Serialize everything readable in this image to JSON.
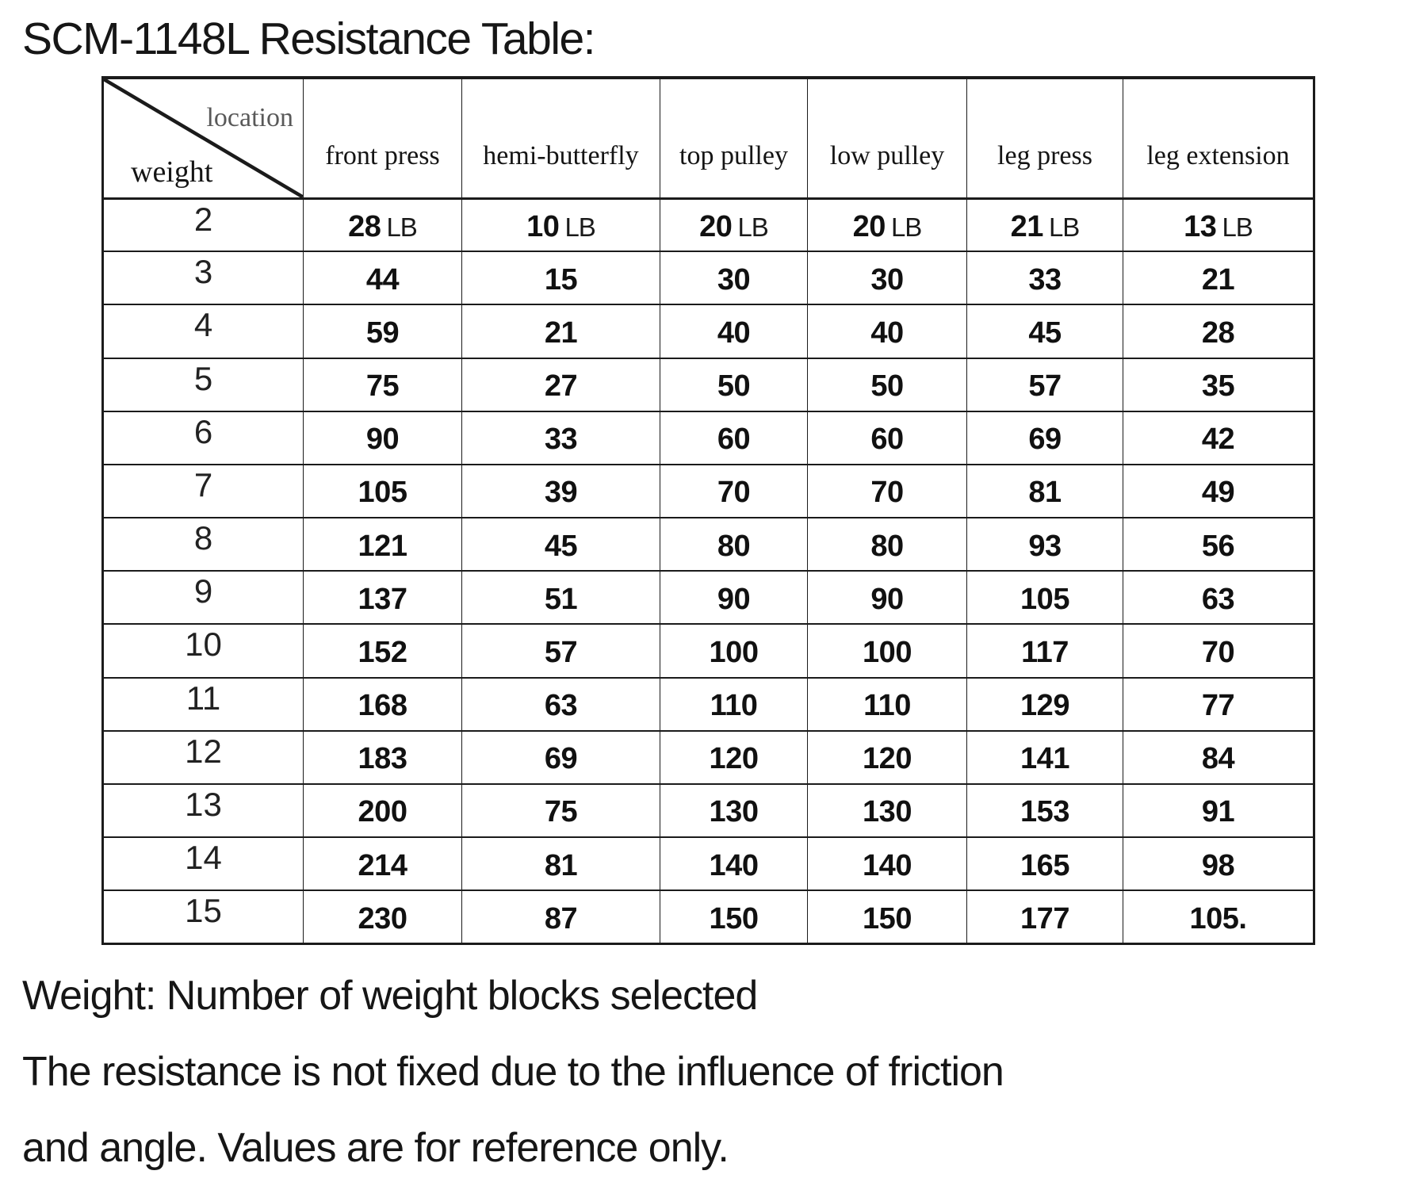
{
  "title": "SCM-1148L Resistance Table:",
  "table": {
    "corner": {
      "top": "location",
      "bottom": "weight"
    },
    "columns": [
      "front press",
      "hemi-butterfly",
      "top pulley",
      "low pulley",
      "leg press",
      "leg extension"
    ],
    "rows": [
      {
        "weight": "2",
        "unit": "LB",
        "values": [
          "28",
          "10",
          "20",
          "20",
          "21",
          "13"
        ]
      },
      {
        "weight": "3",
        "values": [
          "44",
          "15",
          "30",
          "30",
          "33",
          "21"
        ]
      },
      {
        "weight": "4",
        "values": [
          "59",
          "21",
          "40",
          "40",
          "45",
          "28"
        ]
      },
      {
        "weight": "5",
        "values": [
          "75",
          "27",
          "50",
          "50",
          "57",
          "35"
        ]
      },
      {
        "weight": "6",
        "values": [
          "90",
          "33",
          "60",
          "60",
          "69",
          "42"
        ]
      },
      {
        "weight": "7",
        "values": [
          "105",
          "39",
          "70",
          "70",
          "81",
          "49"
        ]
      },
      {
        "weight": "8",
        "values": [
          "121",
          "45",
          "80",
          "80",
          "93",
          "56"
        ]
      },
      {
        "weight": "9",
        "values": [
          "137",
          "51",
          "90",
          "90",
          "105",
          "63"
        ]
      },
      {
        "weight": "10",
        "values": [
          "152",
          "57",
          "100",
          "100",
          "117",
          "70"
        ]
      },
      {
        "weight": "11",
        "values": [
          "168",
          "63",
          "110",
          "110",
          "129",
          "77"
        ]
      },
      {
        "weight": "12",
        "values": [
          "183",
          "69",
          "120",
          "120",
          "141",
          "84"
        ]
      },
      {
        "weight": "13",
        "values": [
          "200",
          "75",
          "130",
          "130",
          "153",
          "91"
        ]
      },
      {
        "weight": "14",
        "values": [
          "214",
          "81",
          "140",
          "140",
          "165",
          "98"
        ]
      },
      {
        "weight": "15",
        "values": [
          "230",
          "87",
          "150",
          "150",
          "177",
          "105."
        ]
      }
    ]
  },
  "footer": {
    "line1": "Weight: Number of weight blocks selected",
    "line2": "The resistance is not fixed due to the influence of friction",
    "line3": "and angle. Values are for reference only."
  },
  "colors": {
    "text": "#161616",
    "corner_muted": "#595959",
    "border": "#1b1b1b",
    "background": "#ffffff"
  }
}
